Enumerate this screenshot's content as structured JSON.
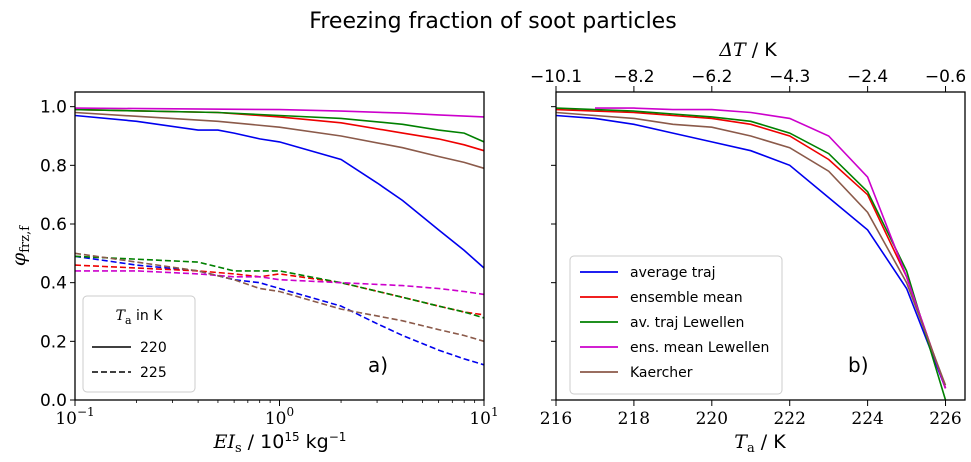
{
  "title": "Freezing fraction of soot particles",
  "colors": {
    "average_traj": "#0000ee",
    "ensemble_mean": "#ee0000",
    "av_traj_lewellen": "#008000",
    "ens_mean_lewellen": "#cc00cc",
    "kaercher": "#8b5a4a"
  },
  "chart_data": [
    {
      "type": "line",
      "panel_label": "a)",
      "xlabel": "EI_s / 10^15 kg^-1",
      "xlabel_main": "EI",
      "xlabel_sub": "s",
      "xlabel_unit": " / 10",
      "xlabel_exp1": "15",
      "xlabel_unit2": " kg",
      "xlabel_exp2": "−1",
      "ylabel": "φ_frz,f",
      "ylabel_main": "φ",
      "ylabel_sub": "frz,f",
      "xscale": "log",
      "xlim": [
        0.1,
        10
      ],
      "ylim": [
        0.0,
        1.05
      ],
      "xticks": [
        0.1,
        1,
        10
      ],
      "xtick_labels": [
        {
          "base": "10",
          "exp": "−1"
        },
        {
          "base": "10",
          "exp": "0"
        },
        {
          "base": "10",
          "exp": "1"
        }
      ],
      "yticks": [
        0.0,
        0.2,
        0.4,
        0.6,
        0.8,
        1.0
      ],
      "ytick_labels": [
        "0.0",
        "0.2",
        "0.4",
        "0.6",
        "0.8",
        "1.0"
      ],
      "legend": {
        "title": "T_a in K",
        "title_main": "T",
        "title_sub": "a",
        "title_rest": " in K",
        "entries": [
          {
            "label": "220",
            "style": "solid"
          },
          {
            "label": "225",
            "style": "dashed"
          }
        ],
        "placement": "bottom-left"
      },
      "series": [
        {
          "key": "average_traj",
          "temperature": "220",
          "style": "solid",
          "x": [
            0.1,
            0.2,
            0.4,
            0.5,
            0.6,
            0.8,
            1,
            2,
            3,
            4,
            6,
            8,
            10
          ],
          "y": [
            0.97,
            0.95,
            0.92,
            0.92,
            0.91,
            0.89,
            0.88,
            0.82,
            0.74,
            0.68,
            0.58,
            0.51,
            0.45
          ]
        },
        {
          "key": "ensemble_mean",
          "temperature": "220",
          "style": "solid",
          "x": [
            0.1,
            0.5,
            1,
            2,
            4,
            6,
            8,
            10
          ],
          "y": [
            0.99,
            0.98,
            0.965,
            0.945,
            0.91,
            0.89,
            0.87,
            0.85
          ]
        },
        {
          "key": "av_traj_lewellen",
          "temperature": "220",
          "style": "solid",
          "x": [
            0.1,
            0.5,
            1,
            2,
            4,
            6,
            8,
            10
          ],
          "y": [
            0.99,
            0.98,
            0.97,
            0.96,
            0.94,
            0.92,
            0.91,
            0.88
          ]
        },
        {
          "key": "ens_mean_lewellen",
          "temperature": "220",
          "style": "solid",
          "x": [
            0.1,
            1,
            2,
            4,
            6,
            8,
            10
          ],
          "y": [
            0.995,
            0.99,
            0.985,
            0.978,
            0.972,
            0.968,
            0.965
          ]
        },
        {
          "key": "kaercher",
          "temperature": "220",
          "style": "solid",
          "x": [
            0.1,
            0.5,
            1,
            2,
            4,
            6,
            8,
            10
          ],
          "y": [
            0.98,
            0.95,
            0.93,
            0.9,
            0.86,
            0.83,
            0.81,
            0.79
          ]
        },
        {
          "key": "average_traj",
          "temperature": "225",
          "style": "dashed",
          "x": [
            0.1,
            0.2,
            0.4,
            0.6,
            0.8,
            1,
            2,
            3,
            4,
            6,
            8,
            10
          ],
          "y": [
            0.49,
            0.46,
            0.44,
            0.41,
            0.4,
            0.38,
            0.32,
            0.26,
            0.22,
            0.17,
            0.14,
            0.12
          ]
        },
        {
          "key": "ensemble_mean",
          "temperature": "225",
          "style": "dashed",
          "x": [
            0.1,
            0.2,
            0.4,
            0.6,
            0.8,
            1,
            2,
            4,
            6,
            8,
            10
          ],
          "y": [
            0.46,
            0.45,
            0.44,
            0.43,
            0.42,
            0.43,
            0.4,
            0.35,
            0.32,
            0.3,
            0.29
          ]
        },
        {
          "key": "av_traj_lewellen",
          "temperature": "225",
          "style": "dashed",
          "x": [
            0.1,
            0.2,
            0.4,
            0.6,
            0.8,
            1,
            2,
            4,
            6,
            8,
            10
          ],
          "y": [
            0.49,
            0.48,
            0.47,
            0.44,
            0.44,
            0.44,
            0.4,
            0.35,
            0.32,
            0.3,
            0.28
          ]
        },
        {
          "key": "ens_mean_lewellen",
          "temperature": "225",
          "style": "dashed",
          "x": [
            0.1,
            0.2,
            0.4,
            0.6,
            0.8,
            1,
            2,
            4,
            6,
            8,
            10
          ],
          "y": [
            0.44,
            0.44,
            0.43,
            0.42,
            0.42,
            0.41,
            0.4,
            0.39,
            0.38,
            0.37,
            0.36
          ]
        },
        {
          "key": "kaercher",
          "temperature": "225",
          "style": "dashed",
          "x": [
            0.1,
            0.2,
            0.4,
            0.6,
            0.8,
            1,
            2,
            4,
            6,
            8,
            10
          ],
          "y": [
            0.5,
            0.47,
            0.44,
            0.41,
            0.38,
            0.37,
            0.31,
            0.27,
            0.24,
            0.22,
            0.2
          ]
        }
      ]
    },
    {
      "type": "line",
      "panel_label": "b)",
      "xlabel": "T_a / K",
      "xlabel_main": "T",
      "xlabel_sub": "a",
      "xlabel_unit": " / K",
      "top_xlabel": "ΔT / K",
      "top_xlabel_main": "ΔT",
      "top_xlabel_unit": " / K",
      "xlim": [
        216,
        226.5
      ],
      "ylim": [
        0.0,
        1.05
      ],
      "xticks": [
        216,
        218,
        220,
        222,
        224,
        226
      ],
      "xtick_labels": [
        "216",
        "218",
        "220",
        "222",
        "224",
        "226"
      ],
      "top_xticks": [
        216,
        218,
        220,
        222,
        224,
        226
      ],
      "top_xtick_labels": [
        "−10.1",
        "−8.2",
        "−6.2",
        "−4.3",
        "−2.4",
        "−0.6"
      ],
      "yticks": [
        0.0,
        0.2,
        0.4,
        0.6,
        0.8,
        1.0
      ],
      "legend": {
        "entries": [
          {
            "key": "average_traj",
            "label": "average traj"
          },
          {
            "key": "ensemble_mean",
            "label": "ensemble mean"
          },
          {
            "key": "av_traj_lewellen",
            "label": "av. traj Lewellen"
          },
          {
            "key": "ens_mean_lewellen",
            "label": "ens. mean Lewellen"
          },
          {
            "key": "kaercher",
            "label": "Kaercher"
          }
        ],
        "placement": "bottom-left"
      },
      "series": [
        {
          "key": "average_traj",
          "name": "average traj",
          "x": [
            216,
            217,
            218,
            219,
            220,
            221,
            222,
            223,
            224,
            225,
            226
          ],
          "y": [
            0.97,
            0.96,
            0.94,
            0.91,
            0.88,
            0.85,
            0.8,
            0.69,
            0.58,
            0.38,
            0.04
          ]
        },
        {
          "key": "ensemble_mean",
          "name": "ensemble mean",
          "x": [
            216,
            217,
            218,
            219,
            220,
            221,
            222,
            223,
            224,
            225,
            226
          ],
          "y": [
            0.99,
            0.985,
            0.98,
            0.97,
            0.96,
            0.94,
            0.9,
            0.82,
            0.7,
            0.42,
            0.04
          ]
        },
        {
          "key": "av_traj_lewellen",
          "name": "av. traj Lewellen",
          "x": [
            216,
            217,
            218,
            219,
            220,
            221,
            222,
            223,
            224,
            225,
            226
          ],
          "y": [
            0.995,
            0.99,
            0.985,
            0.975,
            0.965,
            0.95,
            0.91,
            0.84,
            0.71,
            0.44,
            0.0
          ]
        },
        {
          "key": "ens_mean_lewellen",
          "name": "ens. mean Lewellen",
          "x": [
            217,
            218,
            219,
            220,
            221,
            222,
            223,
            224,
            225,
            226
          ],
          "y": [
            0.995,
            0.995,
            0.99,
            0.99,
            0.98,
            0.96,
            0.9,
            0.76,
            0.42,
            0.04
          ]
        },
        {
          "key": "kaercher",
          "name": "Kaercher",
          "x": [
            216,
            217,
            218,
            219,
            220,
            221,
            222,
            223,
            224,
            225,
            226
          ],
          "y": [
            0.98,
            0.97,
            0.96,
            0.94,
            0.93,
            0.9,
            0.86,
            0.78,
            0.64,
            0.4,
            0.05
          ]
        }
      ]
    }
  ]
}
